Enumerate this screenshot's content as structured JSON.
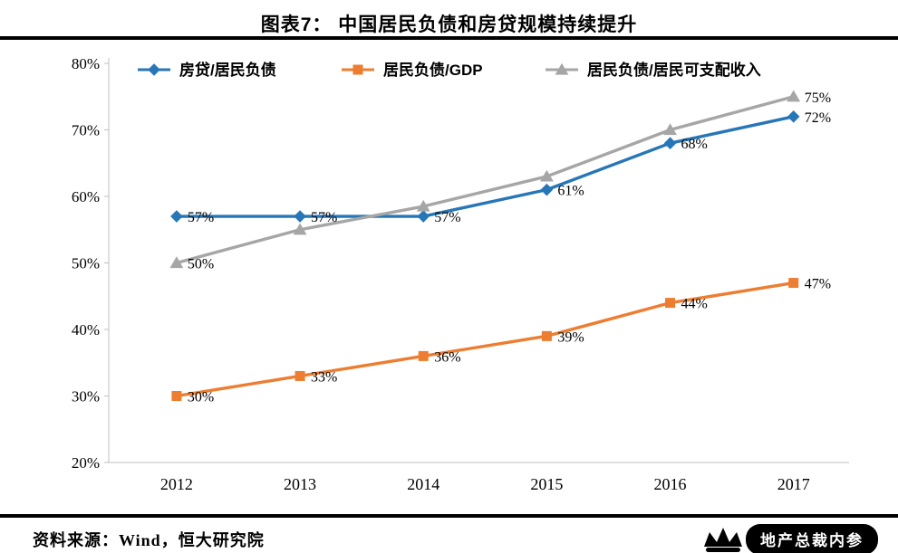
{
  "title": "图表7： 中国居民负债和房贷规模持续提升",
  "footer": {
    "source": "资料来源：Wind，恒大研究院",
    "watermark": "地产总裁内参"
  },
  "chart_data": {
    "type": "line",
    "title": "图表7： 中国居民负债和房贷规模持续提升",
    "x": [
      "2012",
      "2013",
      "2014",
      "2015",
      "2016",
      "2017"
    ],
    "ylim": [
      20,
      80
    ],
    "ytick_values": [
      20,
      30,
      40,
      50,
      60,
      70,
      80
    ],
    "ytick_labels": [
      "20%",
      "30%",
      "40%",
      "50%",
      "60%",
      "70%",
      "80%"
    ],
    "grid": false,
    "legend_position": "top-inside",
    "axis_color": "#bfbfbf",
    "series": [
      {
        "name": "房贷/居民负债",
        "color": "#2776b7",
        "marker": "diamond",
        "values": [
          57,
          57,
          57,
          61,
          68,
          72
        ],
        "point_labels": [
          "57%",
          "57%",
          "57%",
          "61%",
          "68%",
          "72%"
        ]
      },
      {
        "name": "居民负债/GDP",
        "color": "#ed7d31",
        "marker": "square",
        "values": [
          30,
          33,
          36,
          39,
          44,
          47
        ],
        "point_labels": [
          "30%",
          "33%",
          "36%",
          "39%",
          "44%",
          "47%"
        ]
      },
      {
        "name": "居民负债/居民可支配收入",
        "color": "#a6a6a6",
        "marker": "triangle",
        "values": [
          50,
          55,
          58.5,
          63,
          70,
          75
        ],
        "point_labels": [
          "50%",
          "",
          "",
          "",
          "",
          "75%"
        ]
      }
    ]
  }
}
